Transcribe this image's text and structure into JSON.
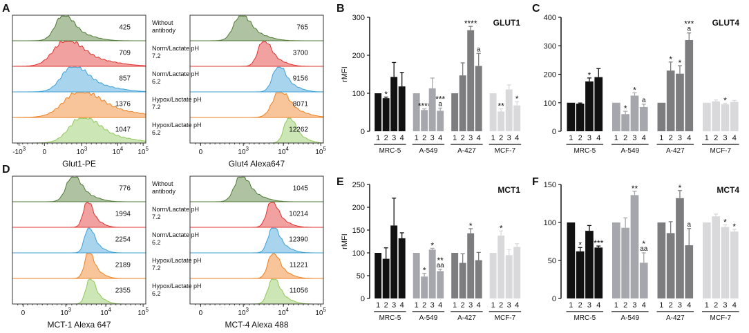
{
  "chart_data": [
    {
      "panel": "A",
      "type": "histogram-overlay",
      "xlabel": "Glut1-PE",
      "xticks": [
        "-10 3",
        "0",
        "10 3",
        "10 4",
        "10 5"
      ],
      "rows": [
        {
          "label": "Without antibody",
          "mfi": "425",
          "color": "#4e7a34"
        },
        {
          "label": "Norm/Lactate pH 7.2",
          "mfi": "709",
          "color": "#e0312d"
        },
        {
          "label": "Norm/Lactate pH 6.2",
          "mfi": "857",
          "color": "#3ea0d8"
        },
        {
          "label": "Hypox/Lactate pH 7.2",
          "mfi": "1376",
          "color": "#ef7f1f"
        },
        {
          "label": "Hypox/Lactate pH 6.2",
          "mfi": "1047",
          "color": "#8fc85a"
        }
      ]
    },
    {
      "panel": "A2",
      "type": "histogram-overlay",
      "xlabel": "Glut4 Alexa647",
      "xticks": [
        "0",
        "10 3",
        "10 4",
        "10 5"
      ],
      "mfi": [
        "765",
        "3700",
        "9156",
        "8071",
        "12262"
      ]
    },
    {
      "panel": "D",
      "type": "histogram-overlay",
      "xlabel": "MCT-1 Alexa 647",
      "xticks": [
        "0",
        "10 3",
        "10 4",
        "10 5"
      ],
      "rows": [
        {
          "label": "Without antibody",
          "mfi": "776"
        },
        {
          "label": "Norm/Lactate pH 7.2",
          "mfi": "1994"
        },
        {
          "label": "Norm/Lactate pH 6.2",
          "mfi": "2254"
        },
        {
          "label": "Hypox/Lactate pH 7.2",
          "mfi": "2189"
        },
        {
          "label": "Hypox/Lactate pH 6.2",
          "mfi": "2355"
        }
      ]
    },
    {
      "panel": "D2",
      "type": "histogram-overlay",
      "xlabel": "MCT-4 Alexa 488",
      "xticks": [
        "0",
        "10 3",
        "10 4",
        "10 5"
      ],
      "mfi": [
        "1045",
        "10214",
        "12390",
        "11221",
        "11056"
      ]
    },
    {
      "panel": "B",
      "type": "bar",
      "title": "GLUT1",
      "ylabel": "rMFI",
      "ylim": [
        0,
        300
      ],
      "yticks": [
        0,
        100,
        200,
        300
      ],
      "tick_labels": [
        "1",
        "2",
        "3",
        "4"
      ],
      "groups": [
        {
          "name": "MRC-5",
          "color": "#111111",
          "values": [
            100,
            87,
            143,
            118
          ],
          "errors": [
            0,
            3,
            38,
            37
          ],
          "marks": [
            "",
            "*",
            "",
            ""
          ]
        },
        {
          "name": "A-549",
          "color": "#a6a6ad",
          "values": [
            100,
            56,
            113,
            54
          ],
          "errors": [
            0,
            3,
            27,
            7
          ],
          "marks": [
            "",
            "****",
            "",
            "***\na"
          ]
        },
        {
          "name": "A-427",
          "color": "#7d7d80",
          "values": [
            100,
            147,
            266,
            172
          ],
          "errors": [
            0,
            33,
            10,
            33
          ],
          "marks": [
            "",
            "",
            "****",
            "a"
          ]
        },
        {
          "name": "MCF-7",
          "color": "#d9d9dc",
          "values": [
            100,
            52,
            110,
            68
          ],
          "errors": [
            0,
            7,
            12,
            10
          ],
          "marks": [
            "",
            "**",
            "",
            "*"
          ]
        }
      ]
    },
    {
      "panel": "C",
      "type": "bar",
      "title": "GLUT4",
      "ylabel": "",
      "ylim": [
        0,
        400
      ],
      "yticks": [
        0,
        100,
        200,
        300,
        400
      ],
      "tick_labels": [
        "1",
        "2",
        "3",
        "4"
      ],
      "groups": [
        {
          "name": "MRC-5",
          "color": "#111111",
          "values": [
            100,
            97,
            175,
            190
          ],
          "errors": [
            0,
            2,
            12,
            30
          ],
          "marks": [
            "",
            "",
            "*",
            ""
          ]
        },
        {
          "name": "A-549",
          "color": "#a6a6ad",
          "values": [
            100,
            60,
            125,
            85
          ],
          "errors": [
            0,
            10,
            10,
            10
          ],
          "marks": [
            "",
            "*",
            "*",
            "a"
          ]
        },
        {
          "name": "A-427",
          "color": "#7d7d80",
          "values": [
            100,
            213,
            202,
            320
          ],
          "errors": [
            0,
            30,
            28,
            25
          ],
          "marks": [
            "",
            "*",
            "*",
            "***\na"
          ]
        },
        {
          "name": "MCF-7",
          "color": "#d9d9dc",
          "values": [
            100,
            105,
            95,
            103
          ],
          "errors": [
            0,
            5,
            3,
            5
          ],
          "marks": [
            "",
            "",
            "*",
            ""
          ]
        }
      ]
    },
    {
      "panel": "E",
      "type": "bar",
      "title": "MCT1",
      "ylabel": "rMFI",
      "ylim": [
        0,
        250
      ],
      "yticks": [
        0,
        50,
        100,
        150,
        200,
        250
      ],
      "tick_labels": [
        "1",
        "2",
        "3",
        "4"
      ],
      "groups": [
        {
          "name": "MRC-5",
          "color": "#111111",
          "values": [
            100,
            87,
            160,
            132
          ],
          "errors": [
            0,
            24,
            60,
            12
          ],
          "marks": [
            "",
            "",
            "",
            ""
          ]
        },
        {
          "name": "A-549",
          "color": "#a6a6ad",
          "values": [
            100,
            48,
            107,
            60
          ],
          "errors": [
            0,
            7,
            3,
            4
          ],
          "marks": [
            "",
            "*",
            "*",
            "**\naa"
          ]
        },
        {
          "name": "A-427",
          "color": "#7d7d80",
          "values": [
            100,
            78,
            143,
            84
          ],
          "errors": [
            0,
            20,
            10,
            17
          ],
          "marks": [
            "",
            "",
            "*",
            ""
          ]
        },
        {
          "name": "MCF-7",
          "color": "#d9d9dc",
          "values": [
            100,
            138,
            95,
            113
          ],
          "errors": [
            0,
            10,
            12,
            7
          ],
          "marks": [
            "",
            "*",
            "",
            ""
          ]
        }
      ]
    },
    {
      "panel": "F",
      "type": "bar",
      "title": "MCT4",
      "ylabel": "",
      "ylim": [
        0,
        150
      ],
      "yticks": [
        0,
        50,
        100,
        150
      ],
      "tick_labels": [
        "1",
        "2",
        "3",
        "4"
      ],
      "groups": [
        {
          "name": "MRC-5",
          "color": "#111111",
          "values": [
            100,
            62,
            89,
            67
          ],
          "errors": [
            0,
            5,
            7,
            2
          ],
          "marks": [
            "",
            "*",
            "",
            "***"
          ]
        },
        {
          "name": "A-549",
          "color": "#a6a6ad",
          "values": [
            100,
            93,
            136,
            47
          ],
          "errors": [
            0,
            13,
            5,
            13
          ],
          "marks": [
            "",
            "",
            "**",
            "*\naa"
          ]
        },
        {
          "name": "A-427",
          "color": "#7d7d80",
          "values": [
            100,
            86,
            132,
            70
          ],
          "errors": [
            0,
            15,
            10,
            22
          ],
          "marks": [
            "",
            "",
            "*",
            "a"
          ]
        },
        {
          "name": "MCF-7",
          "color": "#d9d9dc",
          "values": [
            100,
            108,
            94,
            88
          ],
          "errors": [
            0,
            3,
            3,
            3
          ],
          "marks": [
            "",
            "",
            "*",
            "*"
          ]
        }
      ]
    }
  ],
  "panel_letters": [
    "A",
    "B",
    "C",
    "D",
    "E",
    "F"
  ]
}
